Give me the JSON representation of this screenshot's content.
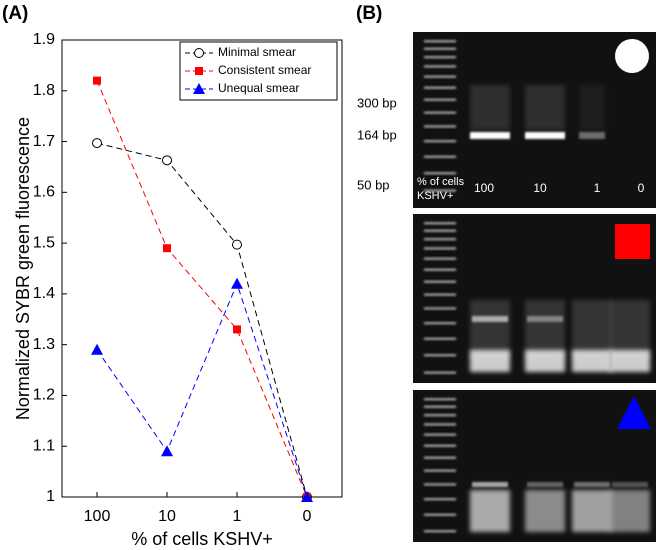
{
  "chart_data": {
    "type": "line",
    "panel_label": "(A)",
    "x_label": "% of cells KSHV+",
    "y_label": "Normalized SYBR green fluorescence",
    "categories": [
      "100",
      "10",
      "1",
      "0"
    ],
    "series": [
      {
        "name": "Minimal smear",
        "color": "#000000",
        "marker": "circle-open",
        "values": [
          1.697,
          1.663,
          1.497,
          1.0
        ]
      },
      {
        "name": "Consistent smear",
        "color": "#ff0000",
        "marker": "square",
        "values": [
          1.82,
          1.49,
          1.33,
          1.0
        ]
      },
      {
        "name": "Unequal smear",
        "color": "#0000ff",
        "marker": "triangle",
        "values": [
          1.29,
          1.09,
          1.42,
          1.0
        ]
      }
    ],
    "ylim": [
      1,
      1.9
    ],
    "yticks": [
      1,
      1.1,
      1.2,
      1.3,
      1.4,
      1.5,
      1.6,
      1.7,
      1.8,
      1.9
    ],
    "legend": "upper right",
    "line_style": "dashed"
  },
  "gel": {
    "panel_label": "(B)",
    "size_markers": [
      "300 bp",
      "164 bp",
      "50 bp"
    ],
    "lane_header": [
      "% of cells",
      "KSHV+"
    ],
    "lanes": [
      "100",
      "10",
      "1",
      "0"
    ]
  }
}
